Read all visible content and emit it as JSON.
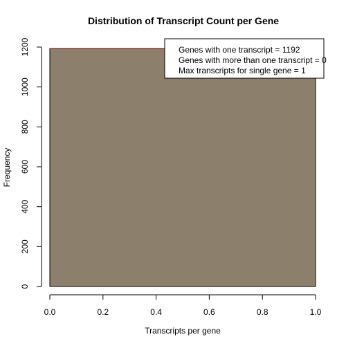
{
  "chart_data": {
    "type": "bar",
    "title": "Distribution of Transcript Count per Gene",
    "xlabel": "Transcripts per gene",
    "ylabel": "Frequency",
    "xlim": [
      0.0,
      1.0
    ],
    "ylim": [
      0,
      1200
    ],
    "x_ticks": [
      "0.0",
      "0.2",
      "0.4",
      "0.6",
      "0.8",
      "1.0"
    ],
    "y_ticks": [
      "0",
      "200",
      "400",
      "600",
      "800",
      "1000",
      "1200"
    ],
    "bars": [
      {
        "x_start": 0.0,
        "x_end": 1.0,
        "value": 1192
      }
    ],
    "colors": {
      "bar_fill": "#8c7f6c",
      "bar_outline": "#000000",
      "bar_top": "#8b1a1a"
    },
    "legend": {
      "placement": "top-right",
      "lines": [
        "Genes with one transcript = 1192",
        "Genes with more than one transcript = 0",
        "Max transcripts for single gene =  1"
      ]
    }
  }
}
